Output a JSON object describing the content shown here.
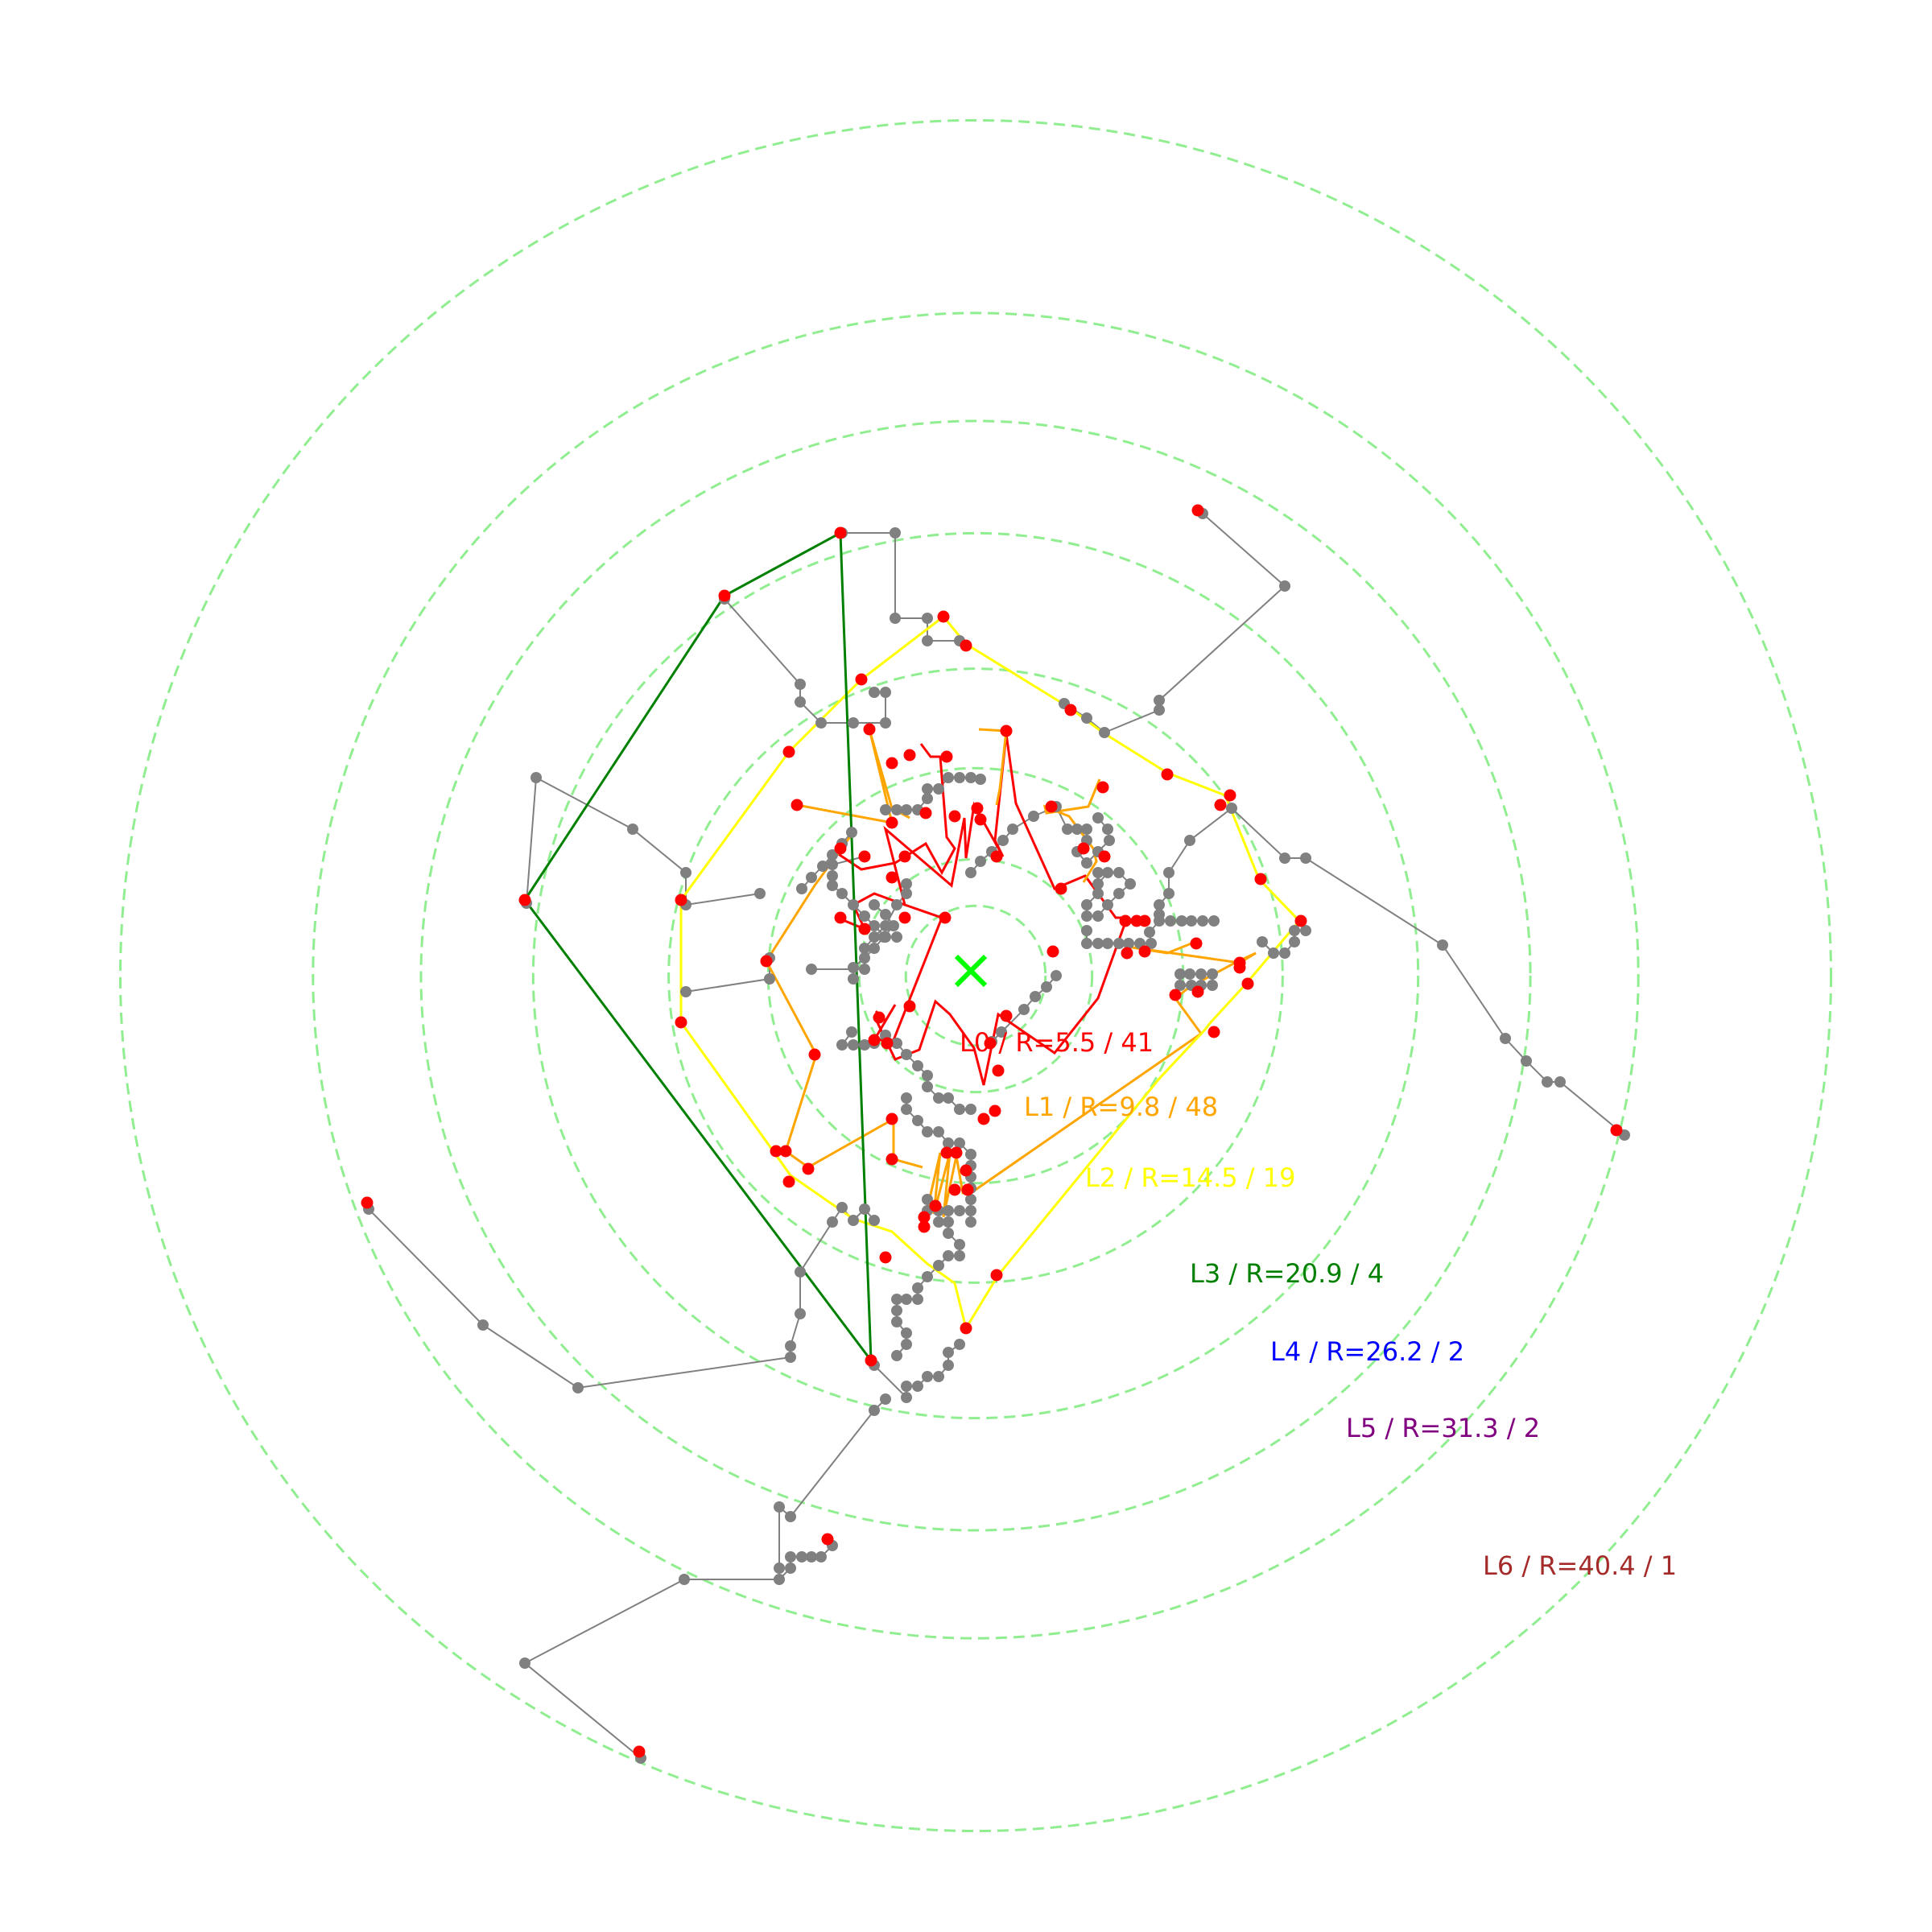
{
  "colors": {
    "ring": "#90ee90",
    "node_gray": "#808080",
    "node_red": "#ff0000",
    "center_marker": "#00ff00"
  },
  "center": {
    "symbol": "✕"
  },
  "layers": [
    {
      "label": "L0 / R=5.5 / 41",
      "radius": 5.5,
      "count": 41,
      "color": "#ff0000"
    },
    {
      "label": "L1 / R=9.8 / 48",
      "radius": 9.8,
      "count": 48,
      "color": "#ffa500"
    },
    {
      "label": "L2 / R=14.5 / 19",
      "radius": 14.5,
      "count": 19,
      "color": "#ffff00"
    },
    {
      "label": "L3 / R=20.9 / 4",
      "radius": 20.9,
      "count": 4,
      "color": "#008000"
    },
    {
      "label": "L4 / R=26.2 / 2",
      "radius": 26.2,
      "count": 2,
      "color": "#0000ff"
    },
    {
      "label": "L5 / R=31.3 / 2",
      "radius": 31.3,
      "count": 2,
      "color": "#800080"
    },
    {
      "label": "L6 / R=40.4 / 1",
      "radius": 40.4,
      "count": 1,
      "color": "#a52a2a"
    }
  ]
}
